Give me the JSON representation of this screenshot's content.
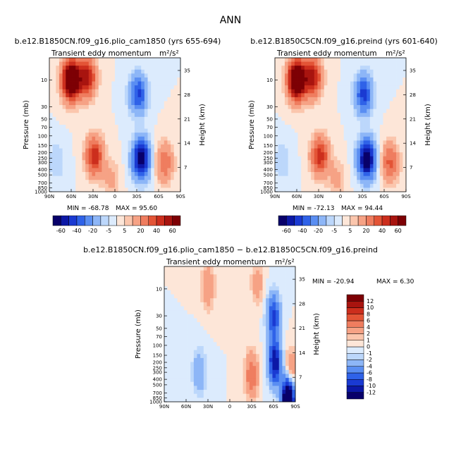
{
  "title": "ANN",
  "palette": [
    "#08006a",
    "#0c18a6",
    "#1a3ad2",
    "#2f62e8",
    "#5a8ef2",
    "#8db6f7",
    "#bcd7fb",
    "#dcebfd",
    "#fde6d8",
    "#fbc6ad",
    "#f6a285",
    "#ef7d5f",
    "#e35436",
    "#cc2e1d",
    "#a8140f",
    "#7d0004"
  ],
  "chart_data": [
    {
      "type": "heatmap",
      "panel": "top-left",
      "title": "b.e12.B1850CN.f09_g16.plio_cam1850 (yrs 655-694)",
      "var_label": "Transient eddy momentum",
      "units": "m²/s²",
      "xlabel": "",
      "ylabel": "Pressure (mb)",
      "y2label": "Height (km)",
      "x_ticks": [
        "90N",
        "60N",
        "30N",
        "0",
        "30S",
        "60S",
        "90S"
      ],
      "pressure_ticks": [
        "10",
        "30",
        "50",
        "70",
        "100",
        "150",
        "200",
        "250",
        "300",
        "400",
        "500",
        "700",
        "850",
        "1000"
      ],
      "height_ticks": [
        "35",
        "28",
        "21",
        "14",
        "7"
      ],
      "min_label": "MIN = -68.78",
      "max_label": "MAX = 95.60",
      "min": -68.78,
      "max": 95.6,
      "colorbar_labels": [
        "-60",
        "-40",
        "-20",
        "-5",
        "5",
        "20",
        "40",
        "60"
      ],
      "features": [
        {
          "lat": 60,
          "p": 10,
          "v": 95
        },
        {
          "lat": 38,
          "p": 9,
          "v": 55
        },
        {
          "lat": 28,
          "p": 230,
          "v": 48
        },
        {
          "lat": -36,
          "p": 260,
          "v": -68
        },
        {
          "lat": -32,
          "p": 18,
          "v": -42
        },
        {
          "lat": -68,
          "p": 300,
          "v": 30
        },
        {
          "lat": 80,
          "p": 280,
          "v": -10
        },
        {
          "lat": 5,
          "p": 600,
          "v": 12
        }
      ]
    },
    {
      "type": "heatmap",
      "panel": "top-right",
      "title": "b.e12.B1850C5CN.f09_g16.preind (yrs 601-640)",
      "var_label": "Transient eddy momentum",
      "units": "m²/s²",
      "xlabel": "",
      "ylabel": "Pressure (mb)",
      "y2label": "Height (km)",
      "x_ticks": [
        "90N",
        "60N",
        "30N",
        "0",
        "30S",
        "60S",
        "90S"
      ],
      "pressure_ticks": [
        "10",
        "30",
        "50",
        "70",
        "100",
        "150",
        "200",
        "250",
        "300",
        "400",
        "500",
        "700",
        "850",
        "1000"
      ],
      "height_ticks": [
        "35",
        "28",
        "21",
        "14",
        "7"
      ],
      "min_label": "MIN = -72.13",
      "max_label": "MAX = 94.44",
      "min": -72.13,
      "max": 94.44,
      "colorbar_labels": [
        "-60",
        "-40",
        "-20",
        "-5",
        "5",
        "20",
        "40",
        "60"
      ],
      "features": [
        {
          "lat": 60,
          "p": 10,
          "v": 94
        },
        {
          "lat": 38,
          "p": 9,
          "v": 55
        },
        {
          "lat": 28,
          "p": 230,
          "v": 46
        },
        {
          "lat": -36,
          "p": 260,
          "v": -72
        },
        {
          "lat": -32,
          "p": 18,
          "v": -44
        },
        {
          "lat": -68,
          "p": 300,
          "v": 32
        },
        {
          "lat": 80,
          "p": 280,
          "v": -10
        },
        {
          "lat": 5,
          "p": 600,
          "v": 12
        }
      ]
    },
    {
      "type": "heatmap",
      "panel": "bottom",
      "title": "b.e12.B1850CN.f09_g16.plio_cam1850 − b.e12.B1850C5CN.f09_g16.preind",
      "var_label": "Transient eddy momentum",
      "units": "m²/s²",
      "xlabel": "",
      "ylabel": "Pressure (mb)",
      "y2label": "Height (km)",
      "x_ticks": [
        "90N",
        "60N",
        "30N",
        "0",
        "30S",
        "60S",
        "90S"
      ],
      "pressure_ticks": [
        "10",
        "30",
        "50",
        "70",
        "100",
        "150",
        "200",
        "250",
        "300",
        "400",
        "500",
        "700",
        "850",
        "1000"
      ],
      "height_ticks": [
        "35",
        "28",
        "21",
        "14",
        "7"
      ],
      "min_label": "MIN = -20.94",
      "max_label": "MAX =   6.30",
      "min": -20.94,
      "max": 6.3,
      "colorbar_labels": [
        "12",
        "10",
        "8",
        "6",
        "4",
        "2",
        "1",
        "0",
        "-1",
        "-2",
        "-4",
        "-6",
        "-8",
        "-10",
        "-12"
      ],
      "features": [
        {
          "lat": 30,
          "p": 9,
          "v": 4
        },
        {
          "lat": -38,
          "p": 8,
          "v": 3
        },
        {
          "lat": -60,
          "p": 30,
          "v": -9
        },
        {
          "lat": -62,
          "p": 200,
          "v": -12
        },
        {
          "lat": -30,
          "p": 330,
          "v": 6
        },
        {
          "lat": 42,
          "p": 300,
          "v": -4
        },
        {
          "lat": -80,
          "p": 900,
          "v": -20
        },
        {
          "lat": -84,
          "p": 300,
          "v": 5
        }
      ]
    }
  ]
}
